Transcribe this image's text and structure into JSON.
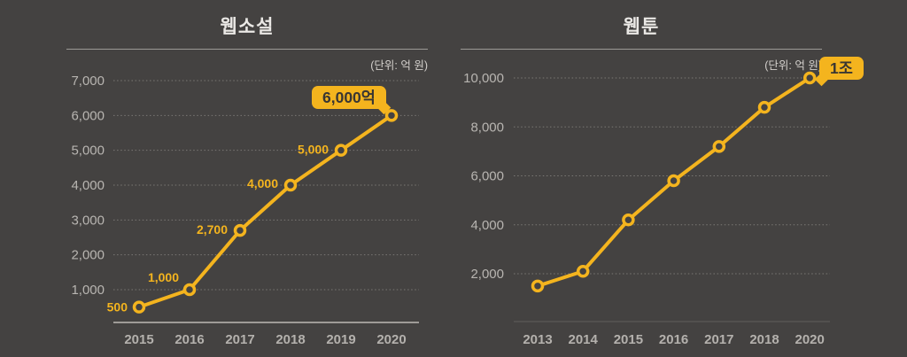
{
  "page": {
    "background_color": "#444241",
    "accent_color": "#f4b41e"
  },
  "chart_data": [
    {
      "type": "line",
      "title": "웹소설",
      "unit_label": "(단위: 억 원)",
      "categories": [
        "2015",
        "2016",
        "2017",
        "2018",
        "2019",
        "2020"
      ],
      "values": [
        500,
        1000,
        2700,
        4000,
        5000,
        6000
      ],
      "point_labels": [
        "500",
        "1,000",
        "2,700",
        "4,000",
        "5,000",
        ""
      ],
      "end_badge": "6,000억",
      "yticks": [
        "1,000",
        "2,000",
        "3,000",
        "4,000",
        "5,000",
        "6,000",
        "7,000"
      ],
      "ytick_values": [
        1000,
        2000,
        3000,
        4000,
        5000,
        6000,
        7000
      ],
      "ylim": [
        1000,
        7000
      ],
      "xlabel": "",
      "ylabel": "",
      "grid": "horizontal-dotted",
      "legend": "none",
      "line_color": "#f4b41e"
    },
    {
      "type": "line",
      "title": "웹툰",
      "unit_label": "(단위: 억 원)",
      "categories": [
        "2013",
        "2014",
        "2015",
        "2016",
        "2017",
        "2018",
        "2020"
      ],
      "values": [
        1500,
        2100,
        4200,
        5800,
        7200,
        8800,
        10000
      ],
      "point_labels": [
        "",
        "",
        "",
        "",
        "",
        "",
        ""
      ],
      "end_badge": "1조",
      "yticks": [
        "2,000",
        "4,000",
        "6,000",
        "8,000",
        "10,000"
      ],
      "ytick_values": [
        2000,
        4000,
        6000,
        8000,
        10000
      ],
      "ylim": [
        2000,
        10000
      ],
      "xlabel": "",
      "ylabel": "",
      "grid": "horizontal-dotted",
      "legend": "none",
      "line_color": "#f4b41e"
    }
  ]
}
